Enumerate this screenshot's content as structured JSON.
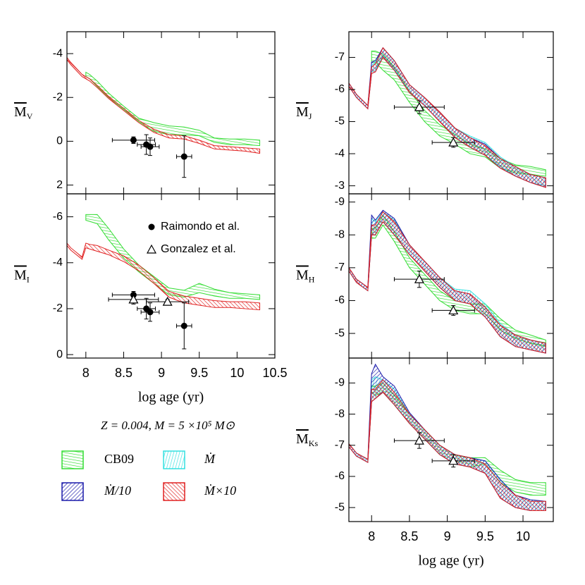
{
  "chart_data": [
    {
      "type": "band",
      "ylabel": "M",
      "ylabel_sub": "V",
      "x": [
        7.7,
        7.8,
        7.95,
        8.0,
        8.05,
        8.15,
        8.3,
        8.5,
        8.7,
        8.9,
        9.1,
        9.3,
        9.5,
        9.7,
        9.9,
        10.1,
        10.3
      ],
      "xlim": [
        7.75,
        10.5
      ],
      "xticks": [
        8,
        8.5,
        9,
        9.5,
        10,
        10.5
      ],
      "xticklabels": false,
      "ylim": [
        2.4,
        -5
      ],
      "yticks": [
        -4,
        -2,
        0,
        2
      ],
      "series": [
        {
          "color": "#33dd33",
          "low": [
            null,
            null,
            null,
            -3.15,
            -3.05,
            -2.75,
            -2.2,
            -1.6,
            -1.05,
            -0.85,
            -0.7,
            -0.65,
            -0.5,
            -0.15,
            -0.1,
            -0.1,
            -0.05
          ],
          "high": [
            null,
            null,
            null,
            -2.95,
            -2.85,
            -2.5,
            -2.0,
            -1.45,
            -0.9,
            -0.45,
            -0.3,
            -0.3,
            -0.25,
            0.05,
            0.15,
            0.15,
            0.2
          ]
        },
        {
          "color": "#e02020",
          "low": [
            -4.05,
            -3.6,
            -3.05,
            -2.95,
            -2.85,
            -2.55,
            -2.05,
            -1.5,
            -0.95,
            -0.55,
            -0.3,
            -0.25,
            -0.05,
            0.2,
            0.25,
            0.3,
            0.35
          ],
          "high": [
            -3.95,
            -3.5,
            -2.95,
            -2.85,
            -2.75,
            -2.45,
            -1.95,
            -1.4,
            -0.85,
            -0.4,
            -0.15,
            -0.1,
            0.1,
            0.35,
            0.4,
            0.45,
            0.55
          ]
        }
      ],
      "observations": [
        {
          "marker": "circle",
          "x": [
            8.63,
            8.8,
            8.85,
            9.3
          ],
          "values": [
            -0.05,
            0.15,
            0.25,
            0.7
          ],
          "xerr": [
            0.28,
            0.12,
            0.12,
            0.1
          ],
          "yerr": [
            0.15,
            0.45,
            0.4,
            0.95
          ]
        }
      ]
    },
    {
      "type": "band",
      "ylabel": "M",
      "ylabel_sub": "I",
      "x": [
        7.7,
        7.8,
        7.95,
        8.0,
        8.05,
        8.15,
        8.3,
        8.5,
        8.7,
        8.9,
        9.1,
        9.3,
        9.5,
        9.7,
        9.9,
        10.1,
        10.3
      ],
      "xlim": [
        7.75,
        10.5
      ],
      "xticks": [
        8,
        8.5,
        9,
        9.5,
        10,
        10.5
      ],
      "xticklabels": true,
      "xlabel": "log age (yr)",
      "ylim": [
        0.15,
        -7
      ],
      "yticks": [
        -6,
        -4,
        -2,
        0
      ],
      "legend": "upper right",
      "series": [
        {
          "color": "#33dd33",
          "low": [
            null,
            null,
            null,
            -6.1,
            -6.1,
            -6.1,
            -5.5,
            -4.6,
            -3.9,
            -3.4,
            -2.9,
            -2.8,
            -3.1,
            -2.85,
            -2.7,
            -2.65,
            -2.6
          ],
          "high": [
            null,
            null,
            null,
            -5.85,
            -5.8,
            -5.7,
            -5.0,
            -4.2,
            -3.6,
            -3.1,
            -2.6,
            -2.5,
            -2.7,
            -2.55,
            -2.45,
            -2.45,
            -2.4
          ]
        },
        {
          "color": "#e02020",
          "low": [
            -5.05,
            -4.65,
            -4.25,
            -4.85,
            -4.8,
            -4.75,
            -4.55,
            -4.3,
            -3.9,
            -3.35,
            -2.75,
            -2.55,
            -2.45,
            -2.35,
            -2.3,
            -2.3,
            -2.25
          ],
          "high": [
            -4.95,
            -4.55,
            -4.15,
            -4.65,
            -4.6,
            -4.5,
            -4.35,
            -4.05,
            -3.65,
            -3.1,
            -2.5,
            -2.25,
            -2.15,
            -2.05,
            -2.05,
            -2.0,
            -1.95
          ]
        }
      ],
      "observations": [
        {
          "name": "Raimondo et al.",
          "marker": "circle",
          "x": [
            8.63,
            8.8,
            8.85,
            9.3
          ],
          "values": [
            -2.6,
            -2.0,
            -1.85,
            -1.25
          ],
          "xerr": [
            0.28,
            0.12,
            0.12,
            0.1
          ],
          "yerr": [
            0.15,
            0.45,
            0.4,
            1.0
          ]
        },
        {
          "name": "Gonzalez et al.",
          "marker": "triangle",
          "x": [
            8.63,
            9.08
          ],
          "values": [
            -2.4,
            -2.3
          ],
          "xerr": [
            0.33,
            0.28
          ],
          "yerr": [
            0.2,
            0.1
          ]
        }
      ]
    },
    {
      "type": "band",
      "ylabel": "M",
      "ylabel_sub": "J",
      "x": [
        7.7,
        7.8,
        7.95,
        8.0,
        8.05,
        8.15,
        8.3,
        8.5,
        8.7,
        8.9,
        9.1,
        9.3,
        9.5,
        9.7,
        9.9,
        10.1,
        10.3
      ],
      "xlim": [
        7.7,
        10.4
      ],
      "xticks": [
        8,
        8.5,
        9,
        9.5,
        10
      ],
      "xticklabels": false,
      "ylim": [
        -2.75,
        -7.8
      ],
      "yticks": [
        -7,
        -6,
        -5,
        -4,
        -3
      ],
      "series": [
        {
          "color": "#33dd33",
          "low": [
            null,
            null,
            null,
            -7.2,
            -7.2,
            -7.1,
            -6.7,
            -5.95,
            -5.35,
            -4.9,
            -4.6,
            -4.3,
            -4.15,
            -3.85,
            -3.65,
            -3.6,
            -3.5
          ],
          "high": [
            null,
            null,
            null,
            -6.85,
            -6.85,
            -6.6,
            -6.3,
            -5.6,
            -5.0,
            -4.55,
            -4.3,
            -4.0,
            -3.9,
            -3.55,
            -3.4,
            -3.35,
            -3.3
          ]
        },
        {
          "color": "#33e0e0",
          "low": [
            -6.2,
            -5.85,
            -5.5,
            -6.75,
            -6.85,
            -7.3,
            -6.9,
            -6.15,
            -5.75,
            -5.3,
            -4.8,
            -4.55,
            -4.35,
            -3.9,
            -3.6,
            -3.35,
            -3.25
          ],
          "high": [
            -6.1,
            -5.75,
            -5.4,
            -6.55,
            -6.6,
            -7.05,
            -6.65,
            -5.9,
            -5.5,
            -5.0,
            -4.5,
            -4.2,
            -3.95,
            -3.6,
            -3.3,
            -3.1,
            -3.0
          ]
        },
        {
          "color": "#1a1aaa",
          "low": [
            -6.2,
            -5.85,
            -5.5,
            -6.85,
            -6.9,
            -7.3,
            -6.9,
            -6.15,
            -5.75,
            -5.3,
            -4.8,
            -4.5,
            -4.3,
            -3.85,
            -3.6,
            -3.35,
            -3.25
          ],
          "high": [
            -6.1,
            -5.75,
            -5.4,
            -6.5,
            -6.55,
            -7.0,
            -6.6,
            -5.9,
            -5.5,
            -5.0,
            -4.5,
            -4.2,
            -3.95,
            -3.55,
            -3.3,
            -3.1,
            -2.95
          ]
        },
        {
          "color": "#e02020",
          "low": [
            -6.2,
            -5.85,
            -5.5,
            -6.7,
            -6.8,
            -7.3,
            -6.9,
            -6.15,
            -5.75,
            -5.3,
            -4.8,
            -4.5,
            -4.25,
            -3.85,
            -3.6,
            -3.35,
            -3.25
          ],
          "high": [
            -6.1,
            -5.75,
            -5.4,
            -6.5,
            -6.55,
            -7.0,
            -6.6,
            -5.9,
            -5.5,
            -5.0,
            -4.5,
            -4.2,
            -3.95,
            -3.55,
            -3.3,
            -3.1,
            -2.95
          ]
        }
      ],
      "observations": [
        {
          "marker": "triangle",
          "x": [
            8.63,
            9.08
          ],
          "values": [
            -5.45,
            -4.35
          ],
          "xerr": [
            0.33,
            0.28
          ],
          "yerr": [
            0.2,
            0.15
          ]
        }
      ]
    },
    {
      "type": "band",
      "ylabel": "M",
      "ylabel_sub": "H",
      "x": [
        7.7,
        7.8,
        7.95,
        8.0,
        8.05,
        8.15,
        8.3,
        8.5,
        8.7,
        8.9,
        9.1,
        9.3,
        9.5,
        9.7,
        9.9,
        10.1,
        10.3
      ],
      "xlim": [
        7.7,
        10.4
      ],
      "xticks": [
        8,
        8.5,
        9,
        9.5,
        10
      ],
      "xticklabels": false,
      "ylim": [
        -4.25,
        -9.25
      ],
      "yticks": [
        -9,
        -8,
        -7,
        -6,
        -5
      ],
      "series": [
        {
          "color": "#33dd33",
          "low": [
            null,
            null,
            null,
            -8.2,
            -8.2,
            -8.6,
            -8.1,
            -7.3,
            -6.8,
            -6.3,
            -6.0,
            -5.9,
            -5.9,
            -5.45,
            -5.1,
            -4.95,
            -4.8
          ],
          "high": [
            null,
            null,
            null,
            -7.9,
            -7.9,
            -8.3,
            -7.8,
            -7.0,
            -6.5,
            -6.0,
            -5.7,
            -5.6,
            -5.6,
            -5.1,
            -4.85,
            -4.7,
            -4.6
          ]
        },
        {
          "color": "#33e0e0",
          "low": [
            -7.0,
            -6.65,
            -6.4,
            -8.5,
            -8.4,
            -8.7,
            -8.45,
            -7.7,
            -7.2,
            -6.7,
            -6.35,
            -6.3,
            -5.9,
            -5.3,
            -4.95,
            -4.8,
            -4.7
          ],
          "high": [
            -6.9,
            -6.55,
            -6.3,
            -8.0,
            -8.0,
            -8.4,
            -8.0,
            -7.4,
            -6.9,
            -6.4,
            -6.0,
            -5.9,
            -5.5,
            -4.9,
            -4.6,
            -4.5,
            -4.4
          ]
        },
        {
          "color": "#1a1aaa",
          "low": [
            -7.0,
            -6.65,
            -6.4,
            -8.6,
            -8.45,
            -8.75,
            -8.5,
            -7.7,
            -7.2,
            -6.7,
            -6.3,
            -6.2,
            -5.8,
            -5.25,
            -4.95,
            -4.8,
            -4.7
          ],
          "high": [
            -6.9,
            -6.55,
            -6.3,
            -8.0,
            -8.0,
            -8.4,
            -8.0,
            -7.4,
            -6.9,
            -6.4,
            -6.0,
            -5.9,
            -5.5,
            -4.9,
            -4.6,
            -4.5,
            -4.4
          ]
        },
        {
          "color": "#e02020",
          "low": [
            -7.0,
            -6.65,
            -6.4,
            -8.3,
            -8.3,
            -8.7,
            -8.4,
            -7.7,
            -7.2,
            -6.7,
            -6.3,
            -6.2,
            -5.8,
            -5.25,
            -4.95,
            -4.8,
            -4.7
          ],
          "high": [
            -6.9,
            -6.55,
            -6.3,
            -8.0,
            -8.0,
            -8.4,
            -8.0,
            -7.4,
            -6.9,
            -6.4,
            -6.0,
            -5.9,
            -5.5,
            -4.9,
            -4.6,
            -4.5,
            -4.4
          ]
        }
      ],
      "observations": [
        {
          "marker": "triangle",
          "x": [
            8.63,
            9.08
          ],
          "values": [
            -6.65,
            -5.7
          ],
          "xerr": [
            0.33,
            0.28
          ],
          "yerr": [
            0.25,
            0.15
          ]
        }
      ]
    },
    {
      "type": "band",
      "ylabel": "M",
      "ylabel_sub": "Ks",
      "x": [
        7.7,
        7.8,
        7.95,
        8.0,
        8.05,
        8.15,
        8.3,
        8.5,
        8.7,
        8.9,
        9.1,
        9.3,
        9.5,
        9.7,
        9.9,
        10.1,
        10.3
      ],
      "xlim": [
        7.7,
        10.4
      ],
      "xticks": [
        8,
        8.5,
        9,
        9.5,
        10
      ],
      "xticklabels": true,
      "xlabel": "log age (yr)",
      "ylim": [
        -4.55,
        -9.8
      ],
      "yticks": [
        -9,
        -8,
        -7,
        -6,
        -5
      ],
      "series": [
        {
          "color": "#33dd33",
          "low": [
            null,
            null,
            null,
            -8.9,
            -8.9,
            -9.0,
            -8.6,
            -8.0,
            -7.5,
            -7.0,
            -6.7,
            -6.6,
            -6.6,
            -6.2,
            -5.9,
            -5.8,
            -5.8
          ],
          "high": [
            null,
            null,
            null,
            -8.7,
            -8.6,
            -8.7,
            -8.3,
            -7.7,
            -7.2,
            -6.7,
            -6.4,
            -6.3,
            -6.4,
            -5.8,
            -5.5,
            -5.4,
            -5.4
          ]
        },
        {
          "color": "#33e0e0",
          "low": [
            -7.05,
            -6.75,
            -6.55,
            -9.1,
            -9.2,
            -9.1,
            -8.8,
            -8.0,
            -7.5,
            -7.0,
            -6.7,
            -6.6,
            -6.5,
            -5.9,
            -5.4,
            -5.25,
            -5.2
          ],
          "high": [
            -6.95,
            -6.65,
            -6.45,
            -8.4,
            -8.5,
            -8.7,
            -8.3,
            -7.7,
            -7.2,
            -6.7,
            -6.4,
            -6.3,
            -6.1,
            -5.3,
            -5.0,
            -4.9,
            -4.9
          ]
        },
        {
          "color": "#1a1aaa",
          "low": [
            -7.05,
            -6.75,
            -6.55,
            -9.3,
            -9.6,
            -9.2,
            -8.9,
            -8.05,
            -7.5,
            -7.0,
            -6.7,
            -6.6,
            -6.5,
            -5.9,
            -5.4,
            -5.25,
            -5.2
          ],
          "high": [
            -6.95,
            -6.65,
            -6.45,
            -8.4,
            -8.5,
            -8.7,
            -8.3,
            -7.7,
            -7.2,
            -6.7,
            -6.4,
            -6.3,
            -6.1,
            -5.3,
            -5.0,
            -4.9,
            -4.9
          ]
        },
        {
          "color": "#e02020",
          "low": [
            -7.05,
            -6.75,
            -6.55,
            -8.8,
            -8.8,
            -9.1,
            -8.7,
            -8.0,
            -7.5,
            -7.0,
            -6.7,
            -6.6,
            -6.4,
            -5.8,
            -5.4,
            -5.2,
            -5.2
          ],
          "high": [
            -6.95,
            -6.65,
            -6.45,
            -8.4,
            -8.5,
            -8.7,
            -8.3,
            -7.7,
            -7.2,
            -6.7,
            -6.4,
            -6.3,
            -6.1,
            -5.3,
            -5.0,
            -4.9,
            -4.9
          ]
        }
      ],
      "observations": [
        {
          "marker": "triangle",
          "x": [
            8.63,
            9.08
          ],
          "values": [
            -7.15,
            -6.5
          ],
          "xerr": [
            0.33,
            0.28
          ],
          "yerr": [
            0.25,
            0.2
          ]
        }
      ]
    }
  ],
  "annotation": "Z = 0.004, M = 5 ×10⁵ M⊙",
  "legend": {
    "items": [
      {
        "name": "CB09",
        "color": "#33dd33"
      },
      {
        "name": "Ṁ",
        "color": "#33e0e0"
      },
      {
        "name": "Ṁ/10",
        "color": "#1a1aaa"
      },
      {
        "name": "Ṁ×10",
        "color": "#e02020"
      }
    ]
  }
}
